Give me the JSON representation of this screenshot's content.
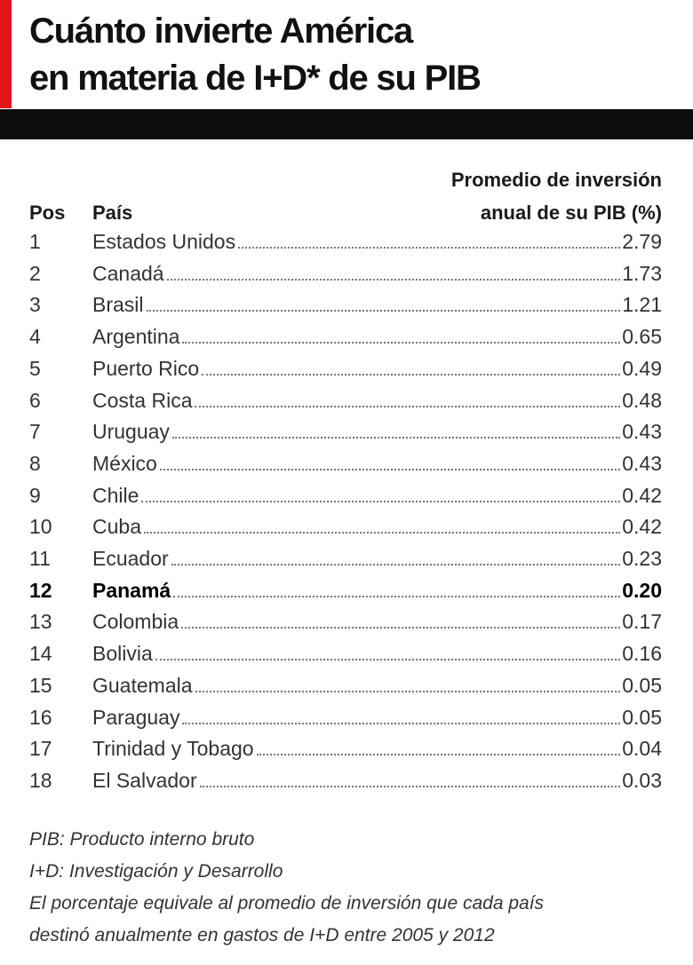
{
  "header": {
    "title": [
      "Cuánto invierte América",
      "en materia de I+D* de su PIB"
    ]
  },
  "table": {
    "columns": {
      "pos": "Pos",
      "country": "País",
      "value": [
        "Promedio de inversión",
        "anual de su PIB (%)"
      ]
    },
    "rows": [
      {
        "pos": "1",
        "country": "Estados Unidos",
        "value": "2.79"
      },
      {
        "pos": "2",
        "country": "Canadá",
        "value": "1.73"
      },
      {
        "pos": "3",
        "country": "Brasil",
        "value": "1.21"
      },
      {
        "pos": "4",
        "country": "Argentina",
        "value": "0.65"
      },
      {
        "pos": "5",
        "country": "Puerto Rico",
        "value": "0.49"
      },
      {
        "pos": "6",
        "country": "Costa Rica",
        "value": "0.48"
      },
      {
        "pos": "7",
        "country": "Uruguay",
        "value": "0.43"
      },
      {
        "pos": "8",
        "country": "México",
        "value": "0.43"
      },
      {
        "pos": "9",
        "country": "Chile",
        "value": "0.42"
      },
      {
        "pos": "10",
        "country": "Cuba",
        "value": "0.42"
      },
      {
        "pos": "11",
        "country": "Ecuador",
        "value": "0.23"
      },
      {
        "pos": "12",
        "country": "Panamá",
        "value": "0.20",
        "emphasis": true
      },
      {
        "pos": "13",
        "country": "Colombia",
        "value": "0.17"
      },
      {
        "pos": "14",
        "country": "Bolivia",
        "value": "0.16"
      },
      {
        "pos": "15",
        "country": "Guatemala",
        "value": "0.05"
      },
      {
        "pos": "16",
        "country": "Paraguay",
        "value": "0.05"
      },
      {
        "pos": "17",
        "country": "Trinidad y Tobago",
        "value": "0.04"
      },
      {
        "pos": "18",
        "country": "El Salvador",
        "value": "0.03"
      }
    ]
  },
  "notes": [
    "PIB: Producto interno bruto",
    "I+D: Investigación y Desarrollo",
    "El porcentaje equivale al promedio de inversión que cada país",
    "destinó anualmente en gastos de I+D entre 2005 y 2012"
  ]
}
